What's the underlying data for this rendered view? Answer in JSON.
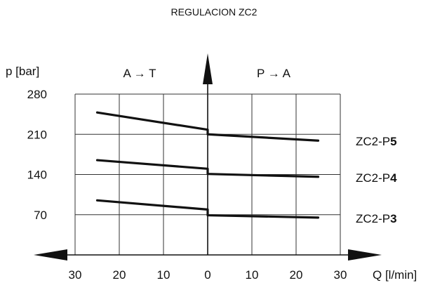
{
  "chart_data": {
    "type": "line",
    "title": "REGULACION  ZC2",
    "ylabel": "p [bar]",
    "xlabel": "Q [l/min]",
    "region_left": "A → T",
    "region_right": "P → A",
    "x_ticks": [
      30,
      20,
      10,
      0,
      10,
      20,
      30
    ],
    "y_ticks": [
      70,
      140,
      210,
      280
    ],
    "xlim": [
      -30,
      30
    ],
    "ylim": [
      0,
      280
    ],
    "grid": true,
    "series": [
      {
        "label_prefix": "ZC2-P",
        "label_suffix": "5",
        "left": {
          "x": [
            -25,
            0
          ],
          "y": [
            248,
            218
          ]
        },
        "right": {
          "x": [
            0,
            25
          ],
          "y": [
            210,
            199
          ]
        }
      },
      {
        "label_prefix": "ZC2-P",
        "label_suffix": "4",
        "left": {
          "x": [
            -25,
            0
          ],
          "y": [
            165,
            150
          ]
        },
        "right": {
          "x": [
            0,
            25
          ],
          "y": [
            141,
            136
          ]
        }
      },
      {
        "label_prefix": "ZC2-P",
        "label_suffix": "3",
        "left": {
          "x": [
            -25,
            0
          ],
          "y": [
            95,
            79
          ]
        },
        "right": {
          "x": [
            0,
            25
          ],
          "y": [
            69,
            65
          ]
        }
      }
    ]
  }
}
